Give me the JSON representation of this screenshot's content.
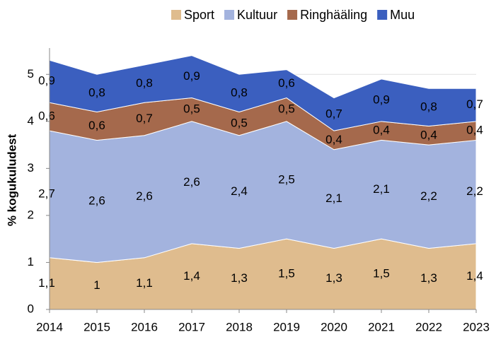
{
  "chart_data": {
    "type": "stacked_area",
    "ylabel": "% kogukuludest",
    "categories": [
      "2014",
      "2015",
      "2016",
      "2017",
      "2018",
      "2019",
      "2020",
      "2021",
      "2022",
      "2023"
    ],
    "ylim": [
      0,
      5.5
    ],
    "yticks": [
      0,
      1,
      2,
      3,
      4,
      5
    ],
    "grid": true,
    "legend": "top",
    "series": [
      {
        "name": "Sport",
        "color": "#dfbc8e",
        "values": [
          1.1,
          1,
          1.1,
          1.4,
          1.3,
          1.5,
          1.3,
          1.5,
          1.3,
          1.4
        ],
        "value_labels": [
          "1,1",
          "1",
          "1,1",
          "1,4",
          "1,3",
          "1,5",
          "1,3",
          "1,5",
          "1,3",
          "1,4"
        ]
      },
      {
        "name": "Kultuur",
        "color": "#a3b3de",
        "values": [
          2.7,
          2.6,
          2.6,
          2.6,
          2.4,
          2.5,
          2.1,
          2.1,
          2.2,
          2.2
        ],
        "value_labels": [
          "2,7",
          "2,6",
          "2,6",
          "2,6",
          "2,4",
          "2,5",
          "2,1",
          "2,1",
          "2,2",
          "2,2"
        ]
      },
      {
        "name": "Ringhääling",
        "color": "#a5694c",
        "values": [
          0.6,
          0.6,
          0.7,
          0.5,
          0.5,
          0.5,
          0.4,
          0.4,
          0.4,
          0.4
        ],
        "value_labels": [
          "0,6",
          "0,6",
          "0,7",
          "0,5",
          "0,5",
          "0,5",
          "0,4",
          "0,4",
          "0,4",
          "0,4"
        ]
      },
      {
        "name": "Muu",
        "color": "#3b5fbf",
        "values": [
          0.9,
          0.8,
          0.8,
          0.9,
          0.8,
          0.6,
          0.7,
          0.9,
          0.8,
          0.7
        ],
        "value_labels": [
          "0,9",
          "0,8",
          "0,8",
          "0,9",
          "0,8",
          "0,6",
          "0,7",
          "0,9",
          "0,8",
          "0,7"
        ]
      }
    ]
  }
}
